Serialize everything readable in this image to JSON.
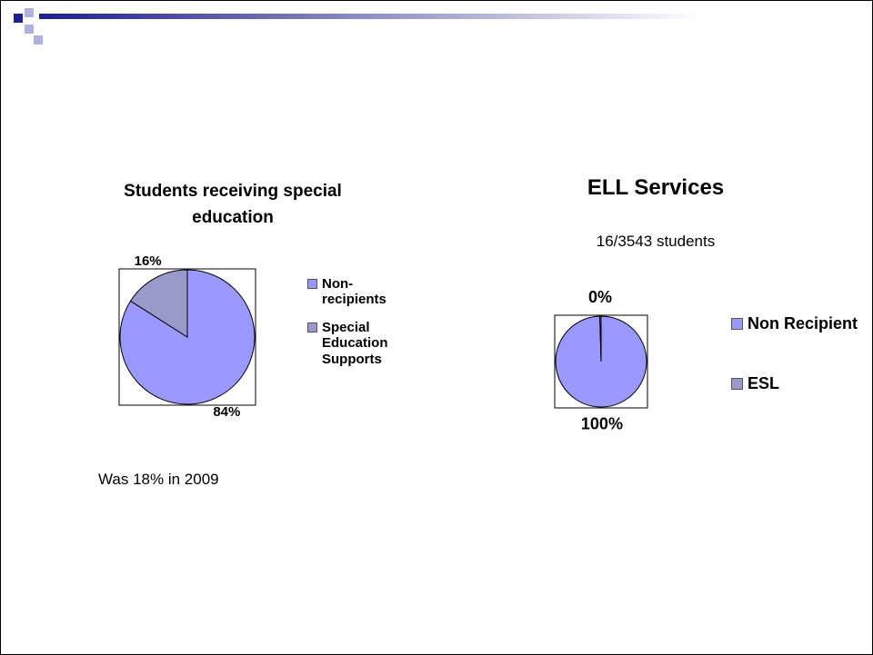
{
  "chart_data": [
    {
      "type": "pie",
      "title": "Students receiving special education",
      "categories": [
        "Non-recipients",
        "Special Education Supports"
      ],
      "values": [
        84,
        16
      ],
      "value_labels": [
        "84%",
        "16%"
      ],
      "colors": [
        "#9999ff",
        "#9999cc"
      ],
      "annotation": "Was 18% in 2009"
    },
    {
      "type": "pie",
      "title": "ELL Services",
      "subtitle": "16/3543 students",
      "categories": [
        "Non Recipient",
        "ESL"
      ],
      "values": [
        99.55,
        0.45
      ],
      "value_labels": [
        "100%",
        "0%"
      ],
      "colors": [
        "#9999ff",
        "#9999cc"
      ]
    }
  ]
}
